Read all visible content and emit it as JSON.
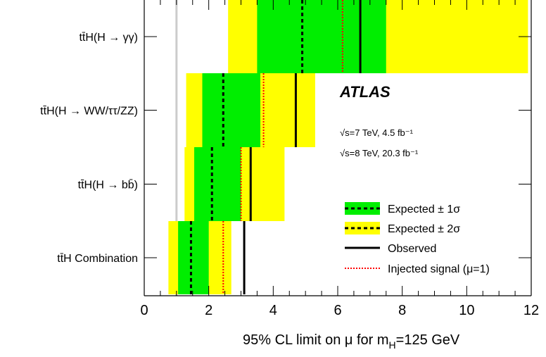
{
  "chart_data": {
    "type": "limit-bands",
    "categories": [
      {
        "label_main": "tt̄H(H → γγ)",
        "expected": 4.9,
        "obs": 6.7,
        "injected": 6.15,
        "s1": [
          3.5,
          7.5
        ],
        "s2": [
          2.6,
          11.9
        ]
      },
      {
        "label_main": "tt̄H(H → WW/ττ/ZZ)",
        "expected": 2.45,
        "obs": 4.7,
        "injected": 3.7,
        "s1": [
          1.8,
          3.6
        ],
        "s2": [
          1.3,
          5.3
        ]
      },
      {
        "label_main": "tt̄H(H → bb̄)",
        "expected": 2.1,
        "obs": 3.3,
        "injected": 3.0,
        "s1": [
          1.55,
          3.0
        ],
        "s2": [
          1.25,
          4.35
        ]
      },
      {
        "label_main": "tt̄H Combination",
        "expected": 1.45,
        "obs": 3.1,
        "injected": 2.45,
        "s1": [
          1.05,
          2.0
        ],
        "s2": [
          0.75,
          2.7
        ]
      }
    ],
    "xlim": [
      0,
      12
    ],
    "xticks": [
      "0",
      "2",
      "4",
      "6",
      "8",
      "10",
      "12"
    ],
    "reference_line": 1,
    "xlabel": "95% CL limit on μ for m_H=125 GeV",
    "colors": {
      "sigma1": "#00ee00",
      "sigma2": "#ffff00",
      "observed": "#000000",
      "injected": "#ff0000",
      "reference": "#cccccc"
    }
  },
  "annotations": {
    "experiment": "ATLAS",
    "energy_lines": [
      "√s=7 TeV, 4.5 fb⁻¹",
      "√s=8 TeV, 20.3 fb⁻¹"
    ]
  },
  "legend": {
    "position": "bottom-right",
    "items": [
      "Expected ± 1σ",
      "Expected ± 2σ",
      "Observed",
      "Injected signal (μ=1)"
    ]
  },
  "xaxis_label_text": "95% CL limit on μ for m",
  "xaxis_label_sub": "H",
  "xaxis_label_tail": "=125 GeV"
}
